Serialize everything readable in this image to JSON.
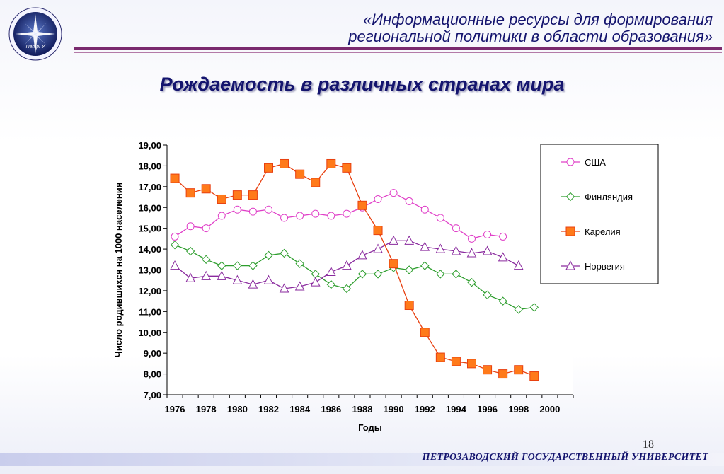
{
  "header": {
    "title_line1": "«Информационные ресурсы для формирования",
    "title_line2": "региональной политики в области образования»",
    "logo_text": "ПетрГУ"
  },
  "slide": {
    "title": "Рождаемость в различных странах мира",
    "page_number": "18"
  },
  "footer": {
    "university": "ПЕТРОЗАВОДСКИЙ ГОСУДАРСТВЕННЫЙ УНИВЕРСИТЕТ"
  },
  "colors": {
    "usa": "#e040c8",
    "finland": "#2e9e2e",
    "karelia": "#e84010",
    "karelia_fill": "#ff7a1a",
    "norway": "#8a2a9e",
    "title_navy": "#14146e"
  },
  "chart_data": {
    "type": "line",
    "xlabel": "Годы",
    "ylabel": "Число родившихся на 1000 населения",
    "ylim": [
      7,
      19
    ],
    "yticks": [
      "7,00",
      "8,00",
      "9,00",
      "10,00",
      "11,00",
      "12,00",
      "13,00",
      "14,00",
      "15,00",
      "16,00",
      "17,00",
      "18,00",
      "19,00"
    ],
    "xlim": [
      1975.5,
      2001.5
    ],
    "xticks": [
      "1976",
      "1978",
      "1980",
      "1982",
      "1984",
      "1986",
      "1988",
      "1990",
      "1992",
      "1994",
      "1996",
      "1998",
      "2000"
    ],
    "legend_position": "right",
    "grid": false,
    "series": [
      {
        "name": "США",
        "marker": "circle",
        "x": [
          1976,
          1977,
          1978,
          1979,
          1980,
          1981,
          1982,
          1983,
          1984,
          1985,
          1986,
          1987,
          1988,
          1989,
          1990,
          1991,
          1992,
          1993,
          1994,
          1995,
          1996,
          1997
        ],
        "y": [
          14.6,
          15.1,
          15.0,
          15.6,
          15.9,
          15.8,
          15.9,
          15.5,
          15.6,
          15.7,
          15.6,
          15.7,
          16.0,
          16.4,
          16.7,
          16.3,
          15.9,
          15.5,
          15.0,
          14.5,
          14.7,
          14.6
        ]
      },
      {
        "name": "Финляндия",
        "marker": "diamond",
        "x": [
          1976,
          1977,
          1978,
          1979,
          1980,
          1981,
          1982,
          1983,
          1984,
          1985,
          1986,
          1987,
          1988,
          1989,
          1990,
          1991,
          1992,
          1993,
          1994,
          1995,
          1996,
          1997,
          1998,
          1999
        ],
        "y": [
          14.2,
          13.9,
          13.5,
          13.2,
          13.2,
          13.2,
          13.7,
          13.8,
          13.3,
          12.8,
          12.3,
          12.1,
          12.8,
          12.8,
          13.1,
          13.0,
          13.2,
          12.8,
          12.8,
          12.4,
          11.8,
          11.5,
          11.1,
          11.2
        ]
      },
      {
        "name": "Карелия",
        "marker": "square",
        "x": [
          1976,
          1977,
          1978,
          1979,
          1980,
          1981,
          1982,
          1983,
          1984,
          1985,
          1986,
          1987,
          1988,
          1989,
          1990,
          1991,
          1992,
          1993,
          1994,
          1995,
          1996,
          1997,
          1998,
          1999
        ],
        "y": [
          17.4,
          16.7,
          16.9,
          16.4,
          16.6,
          16.6,
          17.9,
          18.1,
          17.6,
          17.2,
          18.1,
          17.9,
          16.1,
          14.9,
          13.3,
          11.3,
          10.0,
          8.8,
          8.6,
          8.5,
          8.2,
          8.0,
          8.2,
          7.9
        ]
      },
      {
        "name": "Норвегия",
        "marker": "triangle",
        "x": [
          1976,
          1977,
          1978,
          1979,
          1980,
          1981,
          1982,
          1983,
          1984,
          1985,
          1986,
          1987,
          1988,
          1989,
          1990,
          1991,
          1992,
          1993,
          1994,
          1995,
          1996,
          1997,
          1998
        ],
        "y": [
          13.2,
          12.6,
          12.7,
          12.7,
          12.5,
          12.3,
          12.5,
          12.1,
          12.2,
          12.4,
          12.9,
          13.2,
          13.7,
          14.0,
          14.4,
          14.4,
          14.1,
          14.0,
          13.9,
          13.8,
          13.9,
          13.6,
          13.2
        ]
      }
    ]
  }
}
